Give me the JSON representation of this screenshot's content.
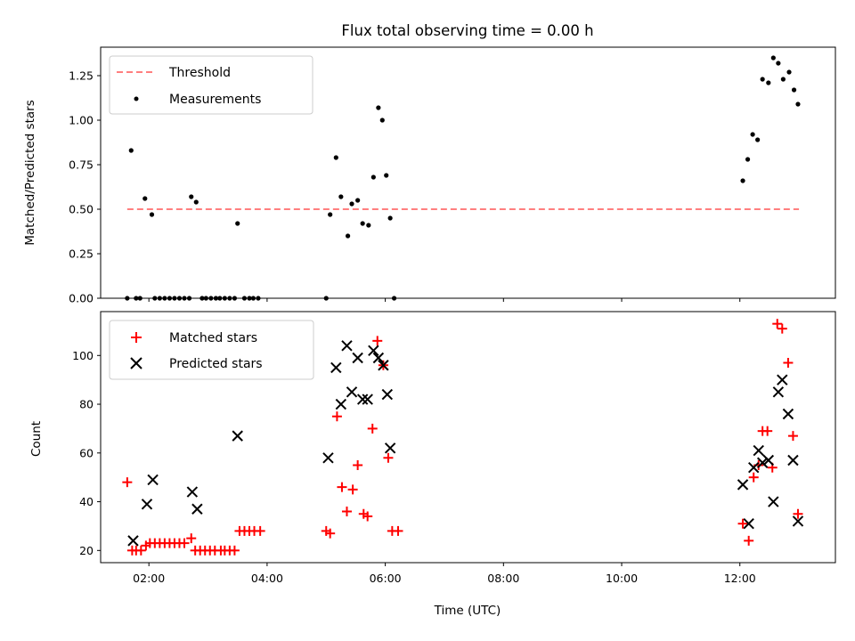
{
  "figure": {
    "title": "Flux total observing time = 0.00 h",
    "xlabel": "Time (UTC)"
  },
  "colors": {
    "threshold": "#ff7f7f",
    "measurements": "#000000",
    "matched": "#ff0000",
    "predicted": "#000000"
  },
  "chart_data": [
    {
      "type": "scatter",
      "panel": "top",
      "ylabel": "Matched/Predicted stars",
      "xlim": [
        "01:11",
        "13:37"
      ],
      "ylim": [
        0,
        1.41
      ],
      "xticks": [
        "02:00",
        "04:00",
        "06:00",
        "08:00",
        "10:00",
        "12:00"
      ],
      "yticks": [
        0.0,
        0.25,
        0.5,
        0.75,
        1.0,
        1.25
      ],
      "ytick_labels": [
        "0.00",
        "0.25",
        "0.50",
        "0.75",
        "1.00",
        "1.25"
      ],
      "legend": {
        "position": "upper left",
        "entries": [
          {
            "label": "Threshold",
            "marker": "dashed-line"
          },
          {
            "label": "Measurements",
            "marker": "dot"
          }
        ]
      },
      "series": [
        {
          "name": "Threshold",
          "kind": "line",
          "x": [
            "01:38",
            "13:00"
          ],
          "y": [
            0.5,
            0.5
          ]
        },
        {
          "name": "Measurements",
          "kind": "scatter",
          "points": [
            [
              "01:38",
              0.0
            ],
            [
              "01:42",
              0.83
            ],
            [
              "01:47",
              0.0
            ],
            [
              "01:51",
              0.0
            ],
            [
              "01:56",
              0.56
            ],
            [
              "02:03",
              0.47
            ],
            [
              "02:06",
              0.0
            ],
            [
              "02:11",
              0.0
            ],
            [
              "02:16",
              0.0
            ],
            [
              "02:21",
              0.0
            ],
            [
              "02:26",
              0.0
            ],
            [
              "02:31",
              0.0
            ],
            [
              "02:36",
              0.0
            ],
            [
              "02:41",
              0.0
            ],
            [
              "02:43",
              0.57
            ],
            [
              "02:48",
              0.54
            ],
            [
              "02:54",
              0.0
            ],
            [
              "02:58",
              0.0
            ],
            [
              "03:03",
              0.0
            ],
            [
              "03:08",
              0.0
            ],
            [
              "03:12",
              0.0
            ],
            [
              "03:17",
              0.0
            ],
            [
              "03:22",
              0.0
            ],
            [
              "03:27",
              0.0
            ],
            [
              "03:30",
              0.42
            ],
            [
              "03:37",
              0.0
            ],
            [
              "03:42",
              0.0
            ],
            [
              "03:46",
              0.0
            ],
            [
              "03:51",
              0.0
            ],
            [
              "05:00",
              0.0
            ],
            [
              "05:04",
              0.47
            ],
            [
              "05:10",
              0.79
            ],
            [
              "05:15",
              0.57
            ],
            [
              "05:22",
              0.35
            ],
            [
              "05:26",
              0.53
            ],
            [
              "05:32",
              0.55
            ],
            [
              "05:37",
              0.42
            ],
            [
              "05:43",
              0.41
            ],
            [
              "05:48",
              0.68
            ],
            [
              "05:53",
              1.07
            ],
            [
              "05:57",
              1.0
            ],
            [
              "06:01",
              0.69
            ],
            [
              "06:05",
              0.45
            ],
            [
              "06:09",
              0.0
            ],
            [
              "12:03",
              0.66
            ],
            [
              "12:08",
              0.78
            ],
            [
              "12:13",
              0.92
            ],
            [
              "12:18",
              0.89
            ],
            [
              "12:23",
              1.23
            ],
            [
              "12:29",
              1.21
            ],
            [
              "12:34",
              1.35
            ],
            [
              "12:39",
              1.32
            ],
            [
              "12:44",
              1.23
            ],
            [
              "12:50",
              1.27
            ],
            [
              "12:55",
              1.17
            ],
            [
              "12:59",
              1.09
            ]
          ]
        }
      ]
    },
    {
      "type": "scatter",
      "panel": "bottom",
      "ylabel": "Count",
      "xlabel": "Time (UTC)",
      "xlim": [
        "01:11",
        "13:37"
      ],
      "ylim": [
        15,
        118
      ],
      "xticks": [
        "02:00",
        "04:00",
        "06:00",
        "08:00",
        "10:00",
        "12:00"
      ],
      "yticks": [
        20,
        40,
        60,
        80,
        100
      ],
      "ytick_labels": [
        "20",
        "40",
        "60",
        "80",
        "100"
      ],
      "legend": {
        "position": "upper left",
        "entries": [
          {
            "label": "Matched stars",
            "marker": "plus"
          },
          {
            "label": "Predicted stars",
            "marker": "x"
          }
        ]
      },
      "series": [
        {
          "name": "Matched stars",
          "marker": "plus",
          "points": [
            [
              "01:38",
              48
            ],
            [
              "01:43",
              20
            ],
            [
              "01:47",
              20
            ],
            [
              "01:52",
              20
            ],
            [
              "01:57",
              22
            ],
            [
              "02:01",
              23
            ],
            [
              "02:06",
              23
            ],
            [
              "02:11",
              23
            ],
            [
              "02:16",
              23
            ],
            [
              "02:21",
              23
            ],
            [
              "02:26",
              23
            ],
            [
              "02:31",
              23
            ],
            [
              "02:36",
              23
            ],
            [
              "02:43",
              25
            ],
            [
              "02:47",
              20
            ],
            [
              "02:52",
              20
            ],
            [
              "02:57",
              20
            ],
            [
              "03:02",
              20
            ],
            [
              "03:07",
              20
            ],
            [
              "03:13",
              20
            ],
            [
              "03:17",
              20
            ],
            [
              "03:22",
              20
            ],
            [
              "03:27",
              20
            ],
            [
              "03:32",
              28
            ],
            [
              "03:37",
              28
            ],
            [
              "03:42",
              28
            ],
            [
              "03:47",
              28
            ],
            [
              "03:53",
              28
            ],
            [
              "05:00",
              28
            ],
            [
              "05:04",
              27
            ],
            [
              "05:11",
              75
            ],
            [
              "05:16",
              46
            ],
            [
              "05:21",
              36
            ],
            [
              "05:27",
              45
            ],
            [
              "05:32",
              55
            ],
            [
              "05:38",
              35
            ],
            [
              "05:42",
              34
            ],
            [
              "05:47",
              70
            ],
            [
              "05:52",
              106
            ],
            [
              "05:58",
              96
            ],
            [
              "06:03",
              58
            ],
            [
              "06:07",
              28
            ],
            [
              "06:13",
              28
            ],
            [
              "12:03",
              31
            ],
            [
              "12:09",
              24
            ],
            [
              "12:14",
              50
            ],
            [
              "12:19",
              55
            ],
            [
              "12:23",
              69
            ],
            [
              "12:28",
              69
            ],
            [
              "12:33",
              54
            ],
            [
              "12:38",
              113
            ],
            [
              "12:43",
              111
            ],
            [
              "12:49",
              97
            ],
            [
              "12:54",
              67
            ],
            [
              "12:59",
              35
            ]
          ]
        },
        {
          "name": "Predicted stars",
          "marker": "x",
          "points": [
            [
              "01:44",
              24
            ],
            [
              "01:58",
              39
            ],
            [
              "02:04",
              49
            ],
            [
              "02:44",
              44
            ],
            [
              "02:49",
              37
            ],
            [
              "03:30",
              67
            ],
            [
              "05:02",
              58
            ],
            [
              "05:10",
              95
            ],
            [
              "05:15",
              80
            ],
            [
              "05:21",
              104
            ],
            [
              "05:26",
              85
            ],
            [
              "05:32",
              99
            ],
            [
              "05:37",
              82
            ],
            [
              "05:42",
              82
            ],
            [
              "05:48",
              102
            ],
            [
              "05:53",
              99
            ],
            [
              "05:58",
              96
            ],
            [
              "06:02",
              84
            ],
            [
              "06:05",
              62
            ],
            [
              "12:03",
              47
            ],
            [
              "12:09",
              31
            ],
            [
              "12:14",
              54
            ],
            [
              "12:19",
              61
            ],
            [
              "12:23",
              56
            ],
            [
              "12:29",
              57
            ],
            [
              "12:34",
              40
            ],
            [
              "12:39",
              85
            ],
            [
              "12:43",
              90
            ],
            [
              "12:49",
              76
            ],
            [
              "12:54",
              57
            ],
            [
              "12:59",
              32
            ]
          ]
        }
      ]
    }
  ]
}
